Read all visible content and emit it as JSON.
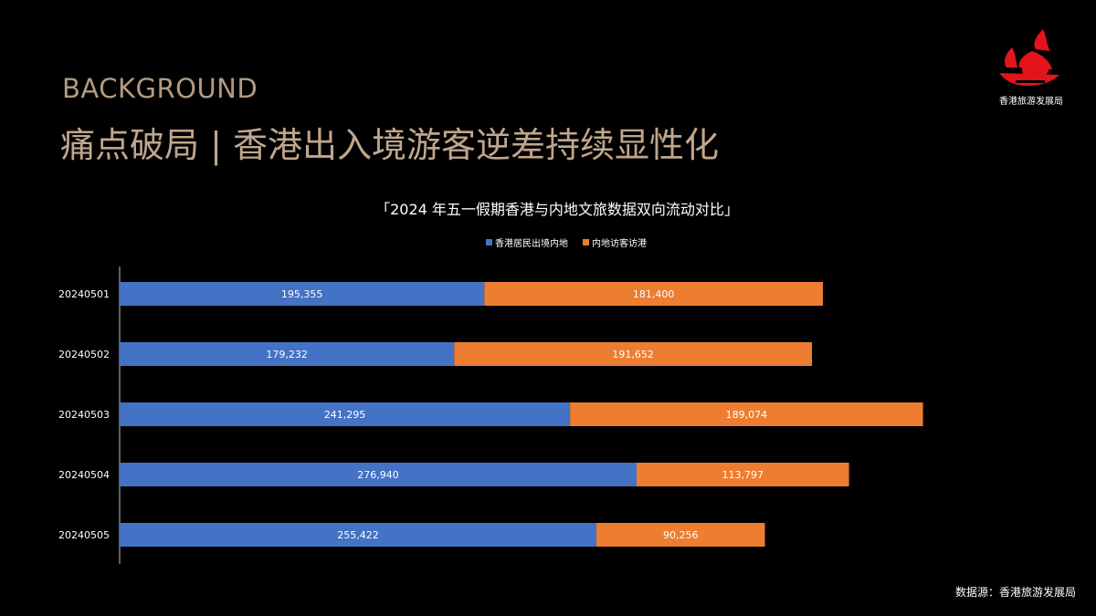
{
  "header": {
    "eyebrow": "BACKGROUND",
    "title": "痛点破局 | 香港出入境游客逆差持续显性化"
  },
  "logo": {
    "text": "香港旅游发展局",
    "icon": "junk-boat-logo-icon",
    "color": "#e3141a"
  },
  "colors": {
    "series1": "#4472c4",
    "series2": "#ed7d31",
    "eyebrow": "#b49a80",
    "title": "#c0a68c"
  },
  "source": "数据源：香港旅游发展局",
  "chart_data": {
    "type": "bar",
    "orientation": "horizontal",
    "stacked": true,
    "title": "「2024 年五一假期香港与内地文旅数据双向流动对比」",
    "categories": [
      "20240501",
      "20240502",
      "20240503",
      "20240504",
      "20240505"
    ],
    "series": [
      {
        "name": "香港居民出境内地",
        "values": [
          195355,
          179232,
          241295,
          276940,
          255422
        ],
        "labels": [
          "195,355",
          "179,232",
          "241,295",
          "276,940",
          "255,422"
        ]
      },
      {
        "name": "内地访客访港",
        "values": [
          181400,
          191652,
          189074,
          113797,
          90256
        ],
        "labels": [
          "181,400",
          "191,652",
          "189,074",
          "113,797",
          "90,256"
        ]
      }
    ],
    "legend_position": "top",
    "grid": false,
    "data_labels": true
  }
}
